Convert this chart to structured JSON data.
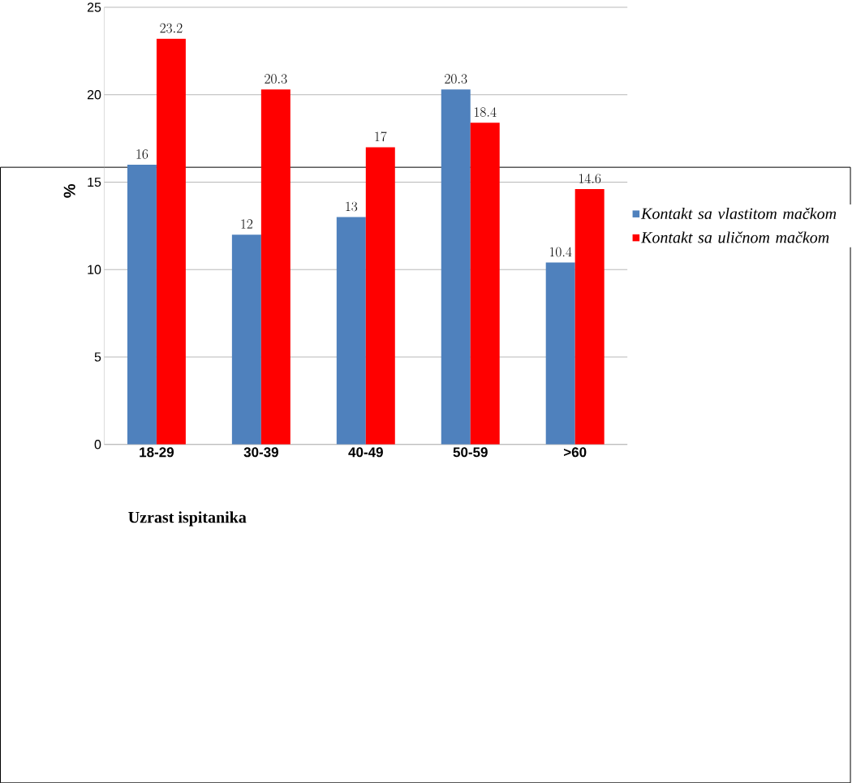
{
  "chart_data": {
    "type": "bar",
    "xlabel": "Uzrast ispitanika",
    "ylabel": "%",
    "categories": [
      "18-29",
      "30-39",
      "40-49",
      "50-59",
      ">60"
    ],
    "series": [
      {
        "name": "Kontakt sa vlastitom mačkom",
        "color": "#4f81bd",
        "values": [
          16,
          12,
          13,
          20.3,
          10.4
        ]
      },
      {
        "name": "Kontakt sa uličnom mačkom",
        "color": "#ff0000",
        "values": [
          23.2,
          20.3,
          17,
          18.4,
          14.6
        ]
      }
    ],
    "ylim": [
      0,
      25
    ],
    "yticks": [
      0,
      5,
      10,
      15,
      20,
      25
    ],
    "grid": "y",
    "legend": "right",
    "data_labels": true
  }
}
